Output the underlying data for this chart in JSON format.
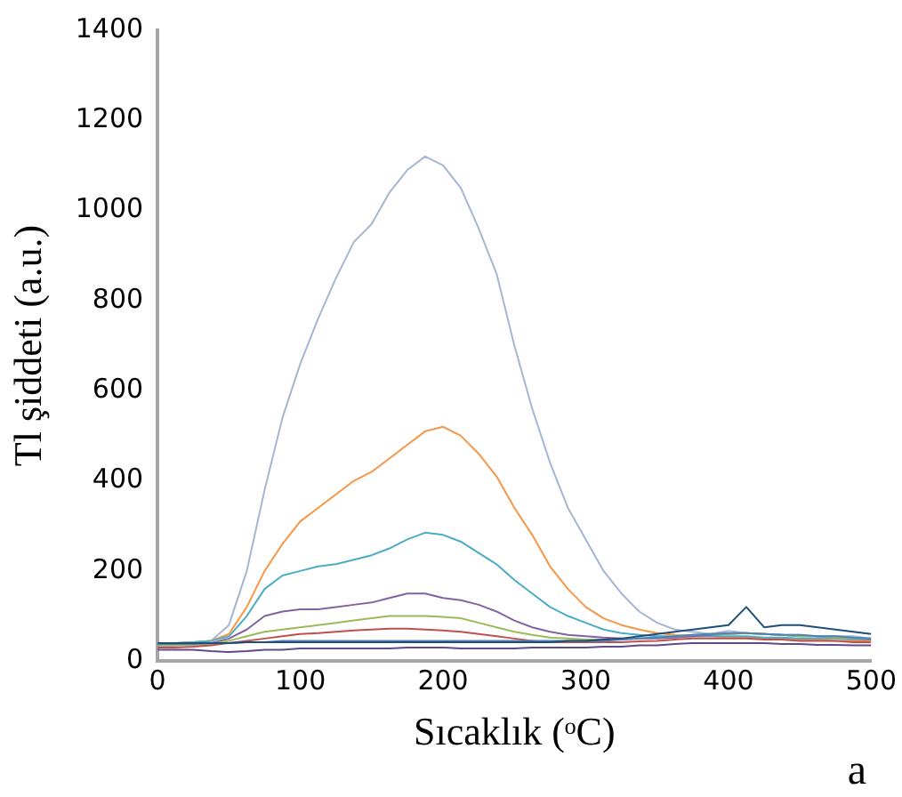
{
  "chart_data": {
    "type": "line",
    "xlabel": "Sıcaklık (ᵒC)",
    "ylabel": "Tl şiddeti (a.u.)",
    "annotations": [
      "a"
    ],
    "x": [
      0,
      12.5,
      25,
      37.5,
      50,
      62.5,
      75,
      87.5,
      100,
      112.5,
      125,
      137.5,
      150,
      162.5,
      175,
      187.5,
      200,
      212.5,
      225,
      237.5,
      250,
      262.5,
      275,
      287.5,
      300,
      312.5,
      325,
      337.5,
      350,
      362.5,
      375,
      387.5,
      400,
      412.5,
      425,
      437.5,
      450,
      462.5,
      475,
      487.5,
      500
    ],
    "xlim": [
      0,
      500
    ],
    "xticks": [
      0,
      100,
      200,
      300,
      400,
      500
    ],
    "ylim": [
      0,
      1400
    ],
    "yticks": [
      0,
      200,
      400,
      600,
      800,
      1000,
      1200,
      1400
    ],
    "grid": false,
    "legend": false,
    "marker": "none",
    "line_style": "solid",
    "series": [
      {
        "color": "#5f4b8b",
        "values": [
          25,
          25,
          25,
          22,
          20,
          22,
          25,
          25,
          28,
          28,
          28,
          28,
          28,
          28,
          30,
          30,
          30,
          28,
          28,
          28,
          28,
          30,
          30,
          30,
          30,
          32,
          32,
          35,
          35,
          38,
          40,
          40,
          40,
          40,
          40,
          38,
          38,
          36,
          36,
          35,
          35
        ]
      },
      {
        "color": "#1f4e79",
        "values": [
          40,
          40,
          40,
          40,
          40,
          42,
          42,
          42,
          42,
          42,
          42,
          42,
          42,
          42,
          42,
          42,
          42,
          42,
          42,
          42,
          42,
          42,
          42,
          45,
          45,
          48,
          50,
          55,
          60,
          65,
          70,
          75,
          80,
          120,
          75,
          80,
          80,
          75,
          70,
          65,
          60
        ]
      },
      {
        "color": "#4f81bd",
        "values": [
          38,
          38,
          38,
          40,
          40,
          42,
          42,
          45,
          45,
          45,
          45,
          45,
          45,
          45,
          45,
          45,
          45,
          45,
          45,
          45,
          45,
          45,
          45,
          45,
          45,
          45,
          48,
          50,
          52,
          55,
          58,
          60,
          62,
          62,
          60,
          58,
          58,
          55,
          55,
          52,
          50
        ]
      },
      {
        "color": "#c0504d",
        "values": [
          30,
          30,
          32,
          35,
          40,
          45,
          50,
          55,
          60,
          62,
          65,
          68,
          70,
          72,
          72,
          70,
          68,
          65,
          60,
          55,
          50,
          45,
          42,
          42,
          42,
          42,
          42,
          44,
          45,
          48,
          50,
          50,
          50,
          50,
          48,
          48,
          45,
          45,
          45,
          42,
          42
        ]
      },
      {
        "color": "#9bbb59",
        "values": [
          35,
          35,
          36,
          38,
          45,
          55,
          65,
          70,
          75,
          80,
          85,
          90,
          95,
          100,
          100,
          100,
          98,
          95,
          85,
          75,
          65,
          58,
          52,
          50,
          48,
          48,
          48,
          50,
          52,
          55,
          58,
          60,
          60,
          62,
          60,
          58,
          55,
          55,
          52,
          50,
          50
        ]
      },
      {
        "color": "#8064a2",
        "values": [
          35,
          35,
          38,
          40,
          50,
          70,
          100,
          110,
          115,
          115,
          120,
          125,
          130,
          140,
          150,
          150,
          140,
          135,
          125,
          110,
          90,
          75,
          65,
          58,
          55,
          52,
          50,
          50,
          50,
          52,
          55,
          58,
          60,
          62,
          60,
          58,
          55,
          55,
          52,
          50,
          48
        ]
      },
      {
        "color": "#4bacc6",
        "values": [
          40,
          40,
          42,
          45,
          55,
          100,
          160,
          190,
          200,
          210,
          215,
          225,
          235,
          250,
          270,
          285,
          280,
          265,
          240,
          215,
          180,
          150,
          120,
          100,
          85,
          70,
          62,
          58,
          55,
          55,
          55,
          55,
          55,
          55,
          52,
          52,
          50,
          50,
          50,
          48,
          48
        ]
      },
      {
        "color": "#f79646",
        "values": [
          40,
          40,
          42,
          45,
          60,
          120,
          200,
          260,
          310,
          340,
          370,
          400,
          420,
          450,
          480,
          510,
          520,
          500,
          460,
          410,
          340,
          280,
          210,
          160,
          120,
          95,
          80,
          70,
          62,
          58,
          55,
          55,
          52,
          52,
          50,
          50,
          48,
          48,
          45,
          45,
          45
        ]
      },
      {
        "color": "#a5b6d5",
        "values": [
          40,
          40,
          42,
          45,
          80,
          200,
          380,
          540,
          660,
          760,
          850,
          930,
          970,
          1040,
          1090,
          1120,
          1100,
          1050,
          960,
          860,
          700,
          560,
          440,
          340,
          270,
          200,
          150,
          110,
          85,
          70,
          65,
          60,
          67,
          62,
          60,
          58,
          58,
          55,
          55,
          55,
          50
        ]
      }
    ]
  }
}
